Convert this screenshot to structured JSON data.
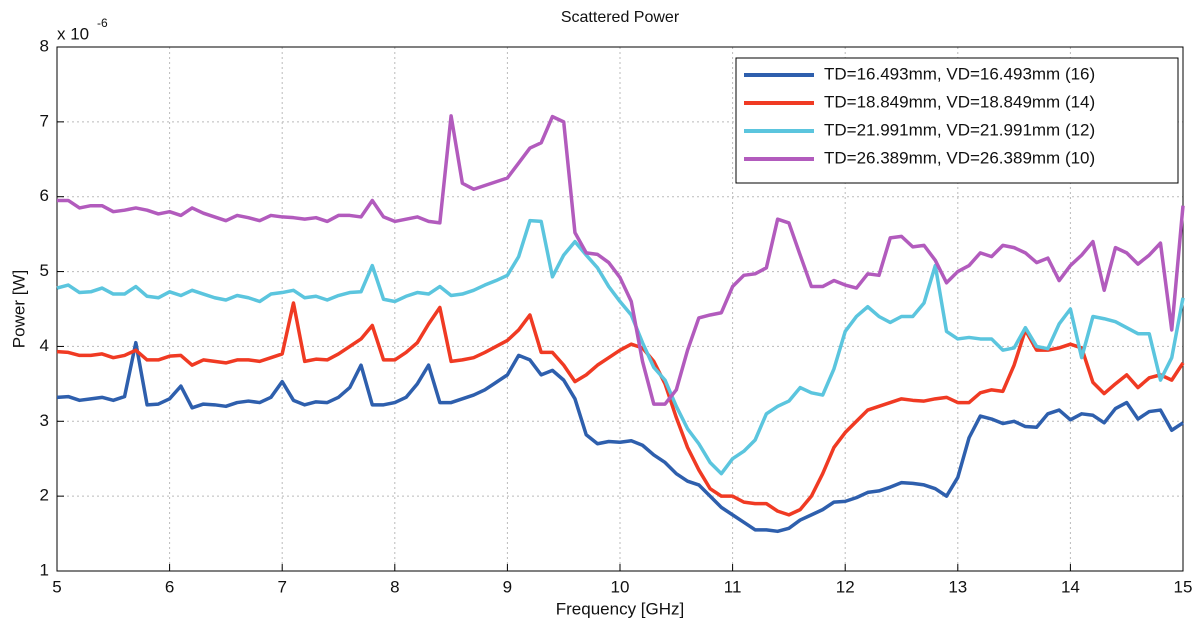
{
  "chart_data": {
    "type": "line",
    "title": "Scattered Power",
    "x_label": "Frequency [GHz]",
    "y_label": "Power [W]",
    "y_multiplier": {
      "base": "x 10",
      "exponent": "-6"
    },
    "xlim": [
      5,
      15
    ],
    "ylim": [
      1,
      8
    ],
    "xticks": [
      5,
      6,
      7,
      8,
      9,
      10,
      11,
      12,
      13,
      14,
      15
    ],
    "yticks": [
      1,
      2,
      3,
      4,
      5,
      6,
      7,
      8
    ],
    "grid": true,
    "legend": "upper right",
    "x": [
      5.0,
      5.1,
      5.2,
      5.3,
      5.4,
      5.5,
      5.6,
      5.7,
      5.8,
      5.9,
      6.0,
      6.1,
      6.2,
      6.3,
      6.4,
      6.5,
      6.6,
      6.7,
      6.8,
      6.9,
      7.0,
      7.1,
      7.2,
      7.3,
      7.4,
      7.5,
      7.6,
      7.7,
      7.8,
      7.9,
      8.0,
      8.1,
      8.2,
      8.3,
      8.4,
      8.5,
      8.6,
      8.7,
      8.8,
      8.9,
      9.0,
      9.1,
      9.2,
      9.3,
      9.4,
      9.5,
      9.6,
      9.7,
      9.8,
      9.9,
      10.0,
      10.1,
      10.2,
      10.3,
      10.4,
      10.5,
      10.6,
      10.7,
      10.8,
      10.9,
      11.0,
      11.1,
      11.2,
      11.3,
      11.4,
      11.5,
      11.6,
      11.7,
      11.8,
      11.9,
      12.0,
      12.1,
      12.2,
      12.3,
      12.4,
      12.5,
      12.6,
      12.7,
      12.8,
      12.9,
      13.0,
      13.1,
      13.2,
      13.3,
      13.4,
      13.5,
      13.6,
      13.7,
      13.8,
      13.9,
      14.0,
      14.1,
      14.2,
      14.3,
      14.4,
      14.5,
      14.6,
      14.7,
      14.8,
      14.9,
      15.0
    ],
    "series": [
      {
        "name": "TD=16.493mm, VD=16.493mm (16)",
        "color": "#2e5fad",
        "values": [
          3.32,
          3.33,
          3.28,
          3.3,
          3.32,
          3.28,
          3.33,
          4.05,
          3.22,
          3.23,
          3.3,
          3.47,
          3.18,
          3.23,
          3.22,
          3.2,
          3.25,
          3.27,
          3.25,
          3.32,
          3.53,
          3.28,
          3.22,
          3.26,
          3.25,
          3.32,
          3.45,
          3.75,
          3.22,
          3.22,
          3.25,
          3.32,
          3.5,
          3.75,
          3.25,
          3.25,
          3.3,
          3.35,
          3.42,
          3.52,
          3.62,
          3.88,
          3.82,
          3.62,
          3.68,
          3.55,
          3.3,
          2.82,
          2.7,
          2.73,
          2.72,
          2.74,
          2.68,
          2.55,
          2.45,
          2.3,
          2.2,
          2.15,
          2.0,
          1.85,
          1.75,
          1.65,
          1.55,
          1.55,
          1.53,
          1.57,
          1.68,
          1.75,
          1.82,
          1.92,
          1.93,
          1.98,
          2.05,
          2.07,
          2.12,
          2.18,
          2.17,
          2.15,
          2.1,
          2.0,
          2.25,
          2.78,
          3.07,
          3.03,
          2.97,
          3.0,
          2.93,
          2.92,
          3.1,
          3.15,
          3.02,
          3.1,
          3.08,
          2.98,
          3.17,
          3.25,
          3.03,
          3.13,
          3.15,
          2.88,
          2.98
        ]
      },
      {
        "name": "TD=18.849mm, VD=18.849mm (14)",
        "color": "#f03a23",
        "values": [
          3.93,
          3.92,
          3.88,
          3.88,
          3.9,
          3.85,
          3.88,
          3.95,
          3.82,
          3.82,
          3.87,
          3.88,
          3.75,
          3.82,
          3.8,
          3.78,
          3.82,
          3.82,
          3.8,
          3.85,
          3.9,
          4.58,
          3.8,
          3.83,
          3.82,
          3.9,
          4.0,
          4.1,
          4.28,
          3.82,
          3.82,
          3.92,
          4.05,
          4.3,
          4.52,
          3.8,
          3.82,
          3.85,
          3.92,
          4.0,
          4.08,
          4.22,
          4.42,
          3.92,
          3.92,
          3.75,
          3.53,
          3.62,
          3.75,
          3.85,
          3.95,
          4.03,
          3.98,
          3.8,
          3.5,
          3.05,
          2.65,
          2.35,
          2.1,
          2.0,
          2.0,
          1.92,
          1.9,
          1.9,
          1.8,
          1.75,
          1.82,
          2.0,
          2.3,
          2.65,
          2.85,
          3.0,
          3.15,
          3.2,
          3.25,
          3.3,
          3.28,
          3.27,
          3.3,
          3.32,
          3.25,
          3.25,
          3.38,
          3.42,
          3.4,
          3.75,
          4.22,
          3.95,
          3.95,
          3.98,
          4.03,
          3.98,
          3.52,
          3.37,
          3.5,
          3.62,
          3.45,
          3.58,
          3.62,
          3.55,
          3.78
        ]
      },
      {
        "name": "TD=21.991mm, VD=21.991mm (12)",
        "color": "#5bc5de",
        "values": [
          4.78,
          4.82,
          4.72,
          4.73,
          4.78,
          4.7,
          4.7,
          4.8,
          4.67,
          4.65,
          4.73,
          4.68,
          4.75,
          4.7,
          4.65,
          4.62,
          4.68,
          4.65,
          4.6,
          4.7,
          4.72,
          4.75,
          4.65,
          4.67,
          4.62,
          4.68,
          4.72,
          4.73,
          5.08,
          4.63,
          4.6,
          4.67,
          4.72,
          4.7,
          4.8,
          4.68,
          4.7,
          4.75,
          4.82,
          4.88,
          4.95,
          5.2,
          5.68,
          5.67,
          4.93,
          5.22,
          5.4,
          5.22,
          5.05,
          4.8,
          4.6,
          4.42,
          4.05,
          3.72,
          3.55,
          3.2,
          2.9,
          2.7,
          2.45,
          2.3,
          2.5,
          2.6,
          2.75,
          3.1,
          3.2,
          3.27,
          3.45,
          3.38,
          3.35,
          3.7,
          4.2,
          4.4,
          4.53,
          4.4,
          4.32,
          4.4,
          4.4,
          4.58,
          5.08,
          4.2,
          4.1,
          4.12,
          4.1,
          4.1,
          3.95,
          3.98,
          4.25,
          4.0,
          3.97,
          4.3,
          4.5,
          3.85,
          4.4,
          4.37,
          4.33,
          4.25,
          4.17,
          4.17,
          3.55,
          3.85,
          4.65
        ]
      },
      {
        "name": "TD=26.389mm, VD=26.389mm (10)",
        "color": "#b25bbd",
        "values": [
          5.95,
          5.95,
          5.85,
          5.88,
          5.88,
          5.8,
          5.82,
          5.85,
          5.82,
          5.77,
          5.8,
          5.75,
          5.85,
          5.78,
          5.73,
          5.68,
          5.75,
          5.72,
          5.68,
          5.75,
          5.73,
          5.72,
          5.7,
          5.72,
          5.67,
          5.75,
          5.75,
          5.73,
          5.95,
          5.73,
          5.67,
          5.7,
          5.73,
          5.67,
          5.65,
          7.08,
          6.18,
          6.1,
          6.15,
          6.2,
          6.25,
          6.45,
          6.65,
          6.72,
          7.07,
          7.0,
          5.52,
          5.25,
          5.23,
          5.12,
          4.92,
          4.6,
          3.8,
          3.23,
          3.23,
          3.42,
          3.95,
          4.38,
          4.42,
          4.45,
          4.8,
          4.95,
          4.97,
          5.05,
          5.7,
          5.65,
          5.22,
          4.8,
          4.8,
          4.88,
          4.82,
          4.78,
          4.97,
          4.95,
          5.45,
          5.47,
          5.33,
          5.35,
          5.15,
          4.85,
          5.0,
          5.08,
          5.25,
          5.2,
          5.35,
          5.32,
          5.25,
          5.12,
          5.18,
          4.88,
          5.08,
          5.22,
          5.4,
          4.75,
          5.32,
          5.25,
          5.1,
          5.22,
          5.38,
          4.22,
          5.88
        ]
      }
    ]
  }
}
